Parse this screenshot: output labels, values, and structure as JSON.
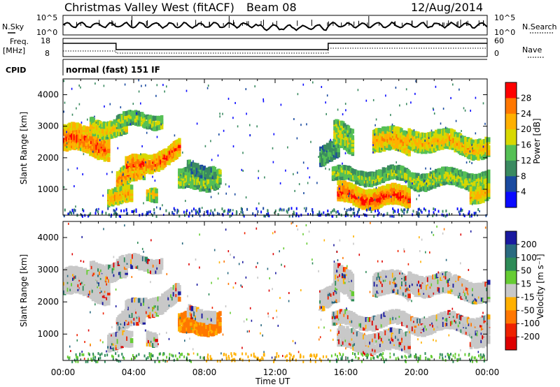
{
  "header": {
    "title": "Christmas Valley West (fitACF)",
    "beam": "Beam 08",
    "date": "12/Aug/2014"
  },
  "status_panels": {
    "nsky_label": "N.Sky",
    "nsky_ticks": [
      "10^5",
      "10^0"
    ],
    "nsearch_label": "N.Search",
    "nsearch_ticks": [
      "10^5",
      "10^0"
    ],
    "freq_label_1": "Freq.",
    "freq_label_2": "[MHz]",
    "freq_ticks": [
      "18",
      "8"
    ],
    "nave_label": "Nave",
    "nave_ticks": [
      "60",
      "0"
    ],
    "cpid_label": "CPID",
    "cpid_text": "normal (fast) 151 IF"
  },
  "time_axis": {
    "label": "Time UT",
    "ticks": [
      "00:00",
      "04:00",
      "08:00",
      "12:00",
      "16:00",
      "20:00",
      "00:00"
    ]
  },
  "chart_data": [
    {
      "type": "heatmap",
      "name": "power",
      "ylabel": "Slant Range [km]",
      "yticks": [
        1000,
        2000,
        3000,
        4000
      ],
      "ylim": [
        180,
        4500
      ],
      "xlim_hours": [
        0,
        24
      ],
      "colorbar_label": "Power [dB]",
      "colorbar_ticks": [
        "28",
        "24",
        "20",
        "16",
        "12",
        "8",
        "4"
      ],
      "colorbar_colors": [
        "#ff0000",
        "#ff7700",
        "#ffb000",
        "#d8d800",
        "#55c055",
        "#3a8a60",
        "#1a4aa0",
        "#0a0aff"
      ]
    },
    {
      "type": "heatmap",
      "name": "velocity",
      "ylabel": "Slant Range [km]",
      "yticks": [
        1000,
        2000,
        3000,
        4000
      ],
      "ylim": [
        180,
        4500
      ],
      "xlim_hours": [
        0,
        24
      ],
      "colorbar_label": "Velocity [m s⁻¹]",
      "colorbar_ticks": [
        "200",
        "100",
        "50",
        "15",
        "-15",
        "-50",
        "-100",
        "-200"
      ],
      "colorbar_colors": [
        "#1a1aa0",
        "#2a6a80",
        "#2e8b57",
        "#66cc33",
        "#c8c8c8",
        "#ffb000",
        "#ff7700",
        "#ee2200",
        "#dd0000"
      ]
    }
  ]
}
